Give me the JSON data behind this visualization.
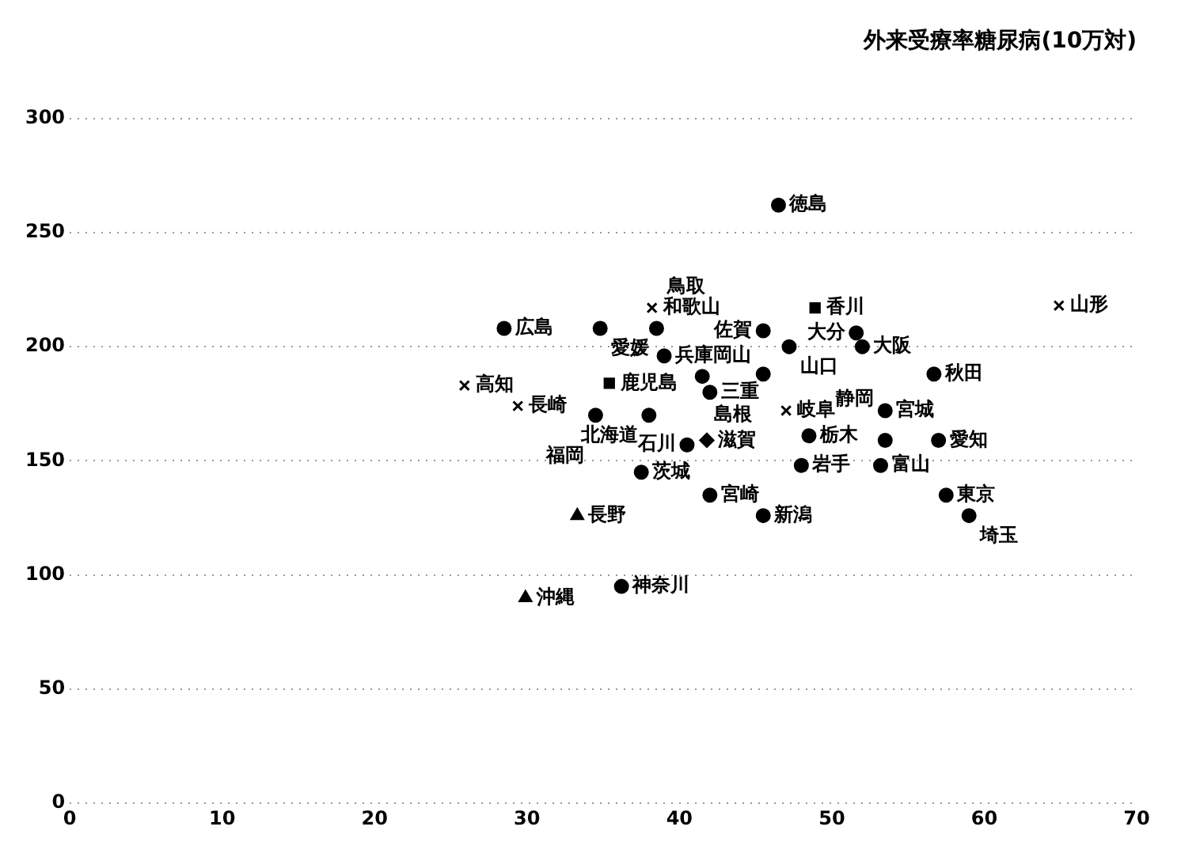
{
  "chart_data": {
    "type": "scatter",
    "title": "外来受療率糖尿病(10万対)",
    "xlim": [
      0,
      70
    ],
    "xticks": [
      0,
      10,
      20,
      30,
      40,
      50,
      60,
      70
    ],
    "ylim": [
      0,
      300
    ],
    "yticks": [
      0,
      50,
      100,
      150,
      200,
      250,
      300
    ],
    "grid": "y",
    "line_style": "dotted",
    "legend": false,
    "series": [
      {
        "color": "#000000",
        "marker": "cross",
        "x": [
          38.2,
          25.9,
          47,
          64.9,
          29.4
        ],
        "values": [
          217,
          183,
          172,
          218,
          174
        ]
      },
      {
        "color": "#000000",
        "marker": "square",
        "x": [
          48.9,
          35.4
        ],
        "values": [
          217,
          184
        ]
      },
      {
        "color": "#000000",
        "marker": "triangle",
        "x": [
          33.3,
          29.9
        ],
        "values": [
          126,
          90
        ]
      },
      {
        "color": "#000000",
        "marker": "diamond",
        "x": [
          41.8
        ],
        "values": [
          159
        ]
      },
      {
        "color": "#000000",
        "marker": "circle",
        "x": [
          56.7,
          36.2,
          51.6,
          53.2,
          37.5,
          46.5,
          28.5,
          34.8,
          38.5,
          45.5,
          47.2,
          52,
          39,
          41.5,
          45.5,
          42,
          38,
          34.5,
          53.5,
          48.5,
          53.5,
          57,
          40.5,
          48,
          42,
          45.5,
          57.5,
          59
        ],
        "values": [
          188,
          95,
          206,
          148,
          145,
          262,
          208,
          208,
          208,
          207,
          200,
          200,
          196,
          187,
          188,
          180,
          170,
          170,
          172,
          161,
          159,
          159,
          157,
          148,
          135,
          126,
          135,
          126
        ]
      }
    ],
    "annotations": [
      {
        "text": "和歌山",
        "x": 38.2,
        "y": 217
      },
      {
        "text": "高知",
        "x": 25.9,
        "y": 183
      },
      {
        "text": "岐阜",
        "x": 47,
        "y": 172
      },
      {
        "text": "山形",
        "x": 64.9,
        "y": 218
      },
      {
        "text": "長崎",
        "x": 29.4,
        "y": 174
      },
      {
        "text": "香川",
        "x": 48.9,
        "y": 217
      },
      {
        "text": "鹿児島",
        "x": 35.4,
        "y": 184
      },
      {
        "text": "長野",
        "x": 33.3,
        "y": 126
      },
      {
        "text": "沖縄",
        "x": 29.9,
        "y": 90
      },
      {
        "text": "滋賀",
        "x": 41.8,
        "y": 159
      },
      {
        "text": "秋田",
        "x": 56.7,
        "y": 188
      },
      {
        "text": "神奈川",
        "x": 36.2,
        "y": 95
      },
      {
        "text": "大分",
        "x": 51.6,
        "y": 206
      },
      {
        "text": "富山",
        "x": 53.2,
        "y": 148
      },
      {
        "text": "茨城",
        "x": 37.5,
        "y": 145
      },
      {
        "text": "徳島",
        "x": 46.5,
        "y": 262
      },
      {
        "text": "広島",
        "x": 28.5,
        "y": 208
      },
      {
        "text": "愛媛",
        "x": 34.8,
        "y": 208
      },
      {
        "text": "鳥取",
        "x": 38.5,
        "y": 208
      },
      {
        "text": "佐賀",
        "x": 45.5,
        "y": 207
      },
      {
        "text": "山口",
        "x": 47.2,
        "y": 200
      },
      {
        "text": "大阪",
        "x": 52,
        "y": 200
      },
      {
        "text": "兵庫",
        "x": 39,
        "y": 196
      },
      {
        "text": "岡山",
        "x": 41.5,
        "y": 187
      },
      {
        "text": "島根",
        "x": 45.5,
        "y": 188
      },
      {
        "text": "三重",
        "x": 42,
        "y": 180
      },
      {
        "text": "北海道",
        "x": 38,
        "y": 170
      },
      {
        "text": "福岡",
        "x": 34.5,
        "y": 170
      },
      {
        "text": "宮城",
        "x": 53.5,
        "y": 172
      },
      {
        "text": "栃木",
        "x": 48.5,
        "y": 161
      },
      {
        "text": "静岡",
        "x": 53.5,
        "y": 159
      },
      {
        "text": "愛知",
        "x": 57,
        "y": 159
      },
      {
        "text": "石川",
        "x": 40.5,
        "y": 157
      },
      {
        "text": "岩手",
        "x": 48,
        "y": 148
      },
      {
        "text": "宮崎",
        "x": 42,
        "y": 135
      },
      {
        "text": "新潟",
        "x": 45.5,
        "y": 126
      },
      {
        "text": "東京",
        "x": 57.5,
        "y": 135
      },
      {
        "text": "埼玉",
        "x": 59,
        "y": 126
      }
    ]
  }
}
